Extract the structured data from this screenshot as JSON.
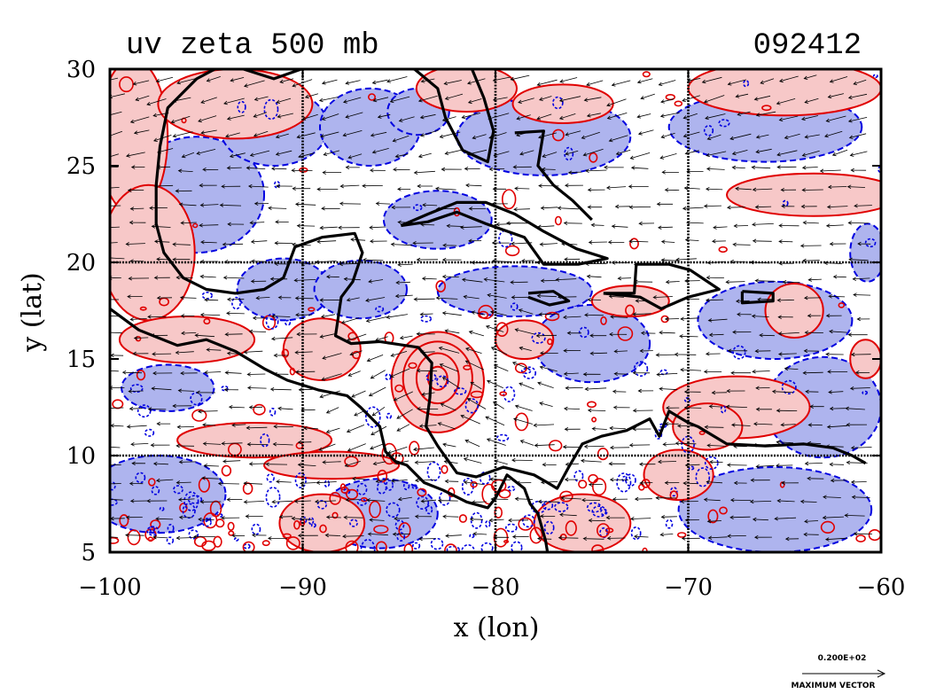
{
  "chart_data": {
    "type": "contour_map_with_vectors",
    "title": "uv zeta 500 mb",
    "timestamp": "092412",
    "xlabel": "x (lon)",
    "ylabel": "y (lat)",
    "xlim": [
      -100,
      -60
    ],
    "ylim": [
      5,
      30
    ],
    "x_ticks": [
      -100,
      -90,
      -80,
      -70,
      -60
    ],
    "x_tick_labels": [
      "−100",
      "−90",
      "−80",
      "−70",
      "−60"
    ],
    "y_ticks": [
      5,
      10,
      15,
      20,
      25,
      30
    ],
    "y_tick_labels": [
      "5",
      "10",
      "15",
      "20",
      "25",
      "30"
    ],
    "grid_lon": [
      -90,
      -80,
      -70
    ],
    "grid_lat": [
      10,
      20
    ],
    "colors": {
      "positive_fill": "#f7c8c8",
      "positive_line": "#e00000",
      "negative_fill": "#aeb4ee",
      "negative_line": "#0000e0",
      "coast": "#000000"
    },
    "vector_note": {
      "value_label": "0.200E+02",
      "caption": "MAXIMUM VECTOR"
    }
  }
}
